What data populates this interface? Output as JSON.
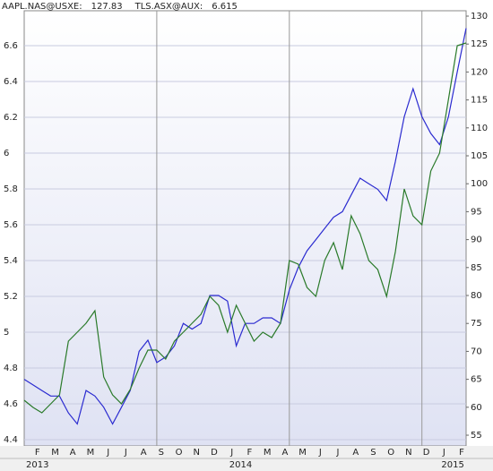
{
  "chart_data": {
    "type": "line",
    "categories": [
      null,
      "F",
      null,
      "M",
      null,
      "A",
      null,
      "M",
      null,
      "J",
      null,
      "J",
      null,
      "A",
      null,
      "S",
      null,
      "O",
      null,
      "N",
      null,
      "D",
      null,
      "J",
      null,
      "F",
      null,
      "M",
      null,
      "A",
      null,
      "M",
      null,
      "J",
      null,
      "J",
      null,
      "A",
      null,
      "S",
      null,
      "O",
      null,
      "N",
      null,
      "D",
      null,
      "J",
      null,
      "F",
      null
    ],
    "years": [
      "2013",
      "2014",
      "2015"
    ],
    "series": [
      {
        "name": "AAPL.NAS@USXE:",
        "color": "#2b2bd0",
        "axis": "y2",
        "values": [
          65,
          64,
          63,
          62,
          62,
          59,
          57,
          63,
          62,
          60,
          57,
          60,
          63,
          70,
          72,
          68,
          69,
          71,
          75,
          74,
          75,
          80,
          80,
          79,
          71,
          75,
          75,
          76,
          76,
          75,
          81,
          85,
          88,
          90,
          92,
          94,
          95,
          98,
          101,
          100,
          99,
          97,
          104,
          112,
          117,
          112,
          109,
          107,
          112,
          120,
          127.83
        ]
      },
      {
        "name": "TLS.ASX@AUX:",
        "color": "#2a7a2a",
        "axis": "y",
        "values": [
          4.62,
          4.58,
          4.55,
          4.6,
          4.65,
          4.95,
          5.0,
          5.05,
          5.12,
          4.75,
          4.65,
          4.6,
          4.68,
          4.8,
          4.9,
          4.9,
          4.85,
          4.95,
          5.0,
          5.05,
          5.1,
          5.2,
          5.15,
          5.0,
          5.15,
          5.05,
          4.95,
          5.0,
          4.97,
          5.05,
          5.4,
          5.38,
          5.25,
          5.2,
          5.4,
          5.5,
          5.35,
          5.65,
          5.55,
          5.4,
          5.35,
          5.2,
          5.45,
          5.8,
          5.65,
          5.6,
          5.9,
          6.0,
          6.3,
          6.6,
          6.615
        ]
      }
    ],
    "ylim": [
      4.365,
      6.795
    ],
    "yticks": [
      4.4,
      4.6,
      4.8,
      5,
      5.2,
      5.4,
      5.6,
      5.8,
      6,
      6.2,
      6.4,
      6.6
    ],
    "y2lim": [
      53.08,
      130.96
    ],
    "y2ticks": [
      55,
      60,
      65,
      70,
      75,
      80,
      85,
      90,
      95,
      100,
      105,
      110,
      115,
      120,
      125,
      130
    ],
    "grid": true
  }
}
